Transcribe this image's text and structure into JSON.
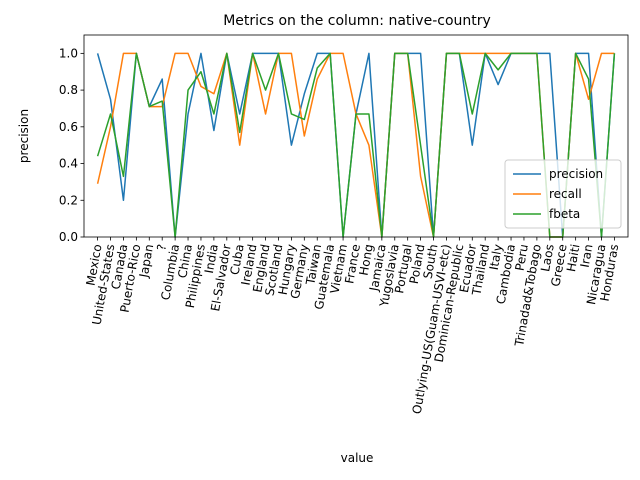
{
  "chart_data": {
    "type": "line",
    "title": "Metrics on the column: native-country",
    "xlabel": "value",
    "ylabel": "precision",
    "ylim": [
      0,
      1.1
    ],
    "yticks": [
      "0.0",
      "0.2",
      "0.4",
      "0.6",
      "0.8",
      "1.0"
    ],
    "ytick_values": [
      0,
      0.2,
      0.4,
      0.6,
      0.8,
      1.0
    ],
    "legend_position": "center-right",
    "grid": false,
    "categories": [
      "Mexico",
      "United-States",
      "Canada",
      "Puerto-Rico",
      "Japan",
      "?",
      "Columbia",
      "China",
      "Philippines",
      "India",
      "El-Salvador",
      "Cuba",
      "Ireland",
      "England",
      "Scotland",
      "Hungary",
      "Germany",
      "Taiwan",
      "Guatemala",
      "Vietnam",
      "France",
      "Hong",
      "Jamaica",
      "Yugoslavia",
      "Portugal",
      "Poland",
      "South",
      "Outlying-US(Guam-USVI-etc)",
      "Dominican-Republic",
      "Ecuador",
      "Thailand",
      "Italy",
      "Cambodia",
      "Peru",
      "Trinadad&Tobago",
      "Laos",
      "Greece",
      "Haiti",
      "Iran",
      "Nicaragua",
      "Honduras"
    ],
    "series": [
      {
        "name": "precision",
        "color": "#1f77b4",
        "values": [
          1.0,
          0.75,
          0.2,
          1.0,
          0.71,
          0.86,
          0.0,
          0.67,
          1.0,
          0.58,
          1.0,
          0.67,
          1.0,
          1.0,
          1.0,
          0.5,
          0.78,
          1.0,
          1.0,
          0.0,
          0.67,
          1.0,
          0.0,
          1.0,
          1.0,
          1.0,
          0.0,
          1.0,
          1.0,
          0.5,
          1.0,
          0.83,
          1.0,
          1.0,
          1.0,
          1.0,
          0.0,
          1.0,
          1.0,
          0.0,
          1.0
        ]
      },
      {
        "name": "recall",
        "color": "#ff7f0e",
        "values": [
          0.29,
          0.6,
          1.0,
          1.0,
          0.71,
          0.71,
          1.0,
          1.0,
          0.82,
          0.78,
          1.0,
          0.5,
          1.0,
          0.67,
          1.0,
          1.0,
          0.55,
          0.86,
          1.0,
          1.0,
          0.67,
          0.5,
          0.0,
          1.0,
          1.0,
          0.33,
          0.0,
          1.0,
          1.0,
          1.0,
          1.0,
          1.0,
          1.0,
          1.0,
          1.0,
          0.0,
          0.0,
          1.0,
          0.75,
          1.0,
          1.0
        ]
      },
      {
        "name": "fbeta",
        "color": "#2ca02c",
        "values": [
          0.44,
          0.67,
          0.33,
          1.0,
          0.71,
          0.74,
          0.0,
          0.8,
          0.9,
          0.67,
          1.0,
          0.57,
          1.0,
          0.8,
          1.0,
          0.67,
          0.64,
          0.92,
          1.0,
          0.0,
          0.67,
          0.67,
          0.0,
          1.0,
          1.0,
          0.5,
          0.0,
          1.0,
          1.0,
          0.67,
          1.0,
          0.91,
          1.0,
          1.0,
          1.0,
          0.0,
          0.0,
          1.0,
          0.86,
          0.0,
          1.0
        ]
      }
    ]
  }
}
